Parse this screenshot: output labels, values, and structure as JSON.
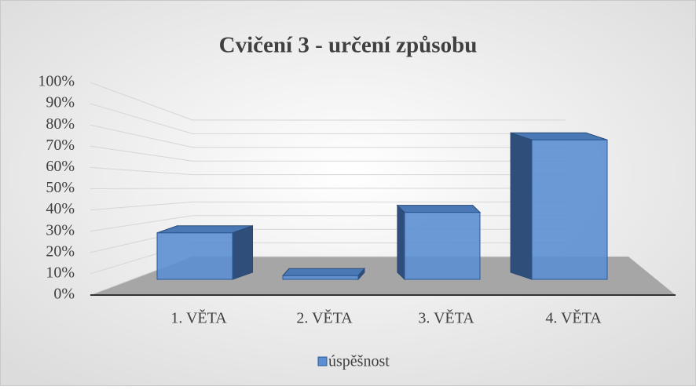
{
  "chart_data": {
    "type": "bar3d",
    "title": "Cvičení 3 - určení způsobu",
    "categories": [
      "1. VĚTA",
      "2. VĚTA",
      "3. VĚTA",
      "4. VĚTA"
    ],
    "series": [
      {
        "name": "úspěšnost",
        "color": "#5b8fd1",
        "values": [
          25,
          2,
          36,
          75
        ]
      }
    ],
    "ylim": [
      0,
      100
    ],
    "yticks": [
      {
        "value": 0,
        "label": "0%"
      },
      {
        "value": 10,
        "label": "10%"
      },
      {
        "value": 20,
        "label": "20%"
      },
      {
        "value": 30,
        "label": "30%"
      },
      {
        "value": 40,
        "label": "40%"
      },
      {
        "value": 50,
        "label": "50%"
      },
      {
        "value": 60,
        "label": "60%"
      },
      {
        "value": 70,
        "label": "70%"
      },
      {
        "value": 80,
        "label": "80%"
      },
      {
        "value": 90,
        "label": "90%"
      },
      {
        "value": 100,
        "label": "100%"
      }
    ],
    "grid": true,
    "legend": "bottom"
  }
}
